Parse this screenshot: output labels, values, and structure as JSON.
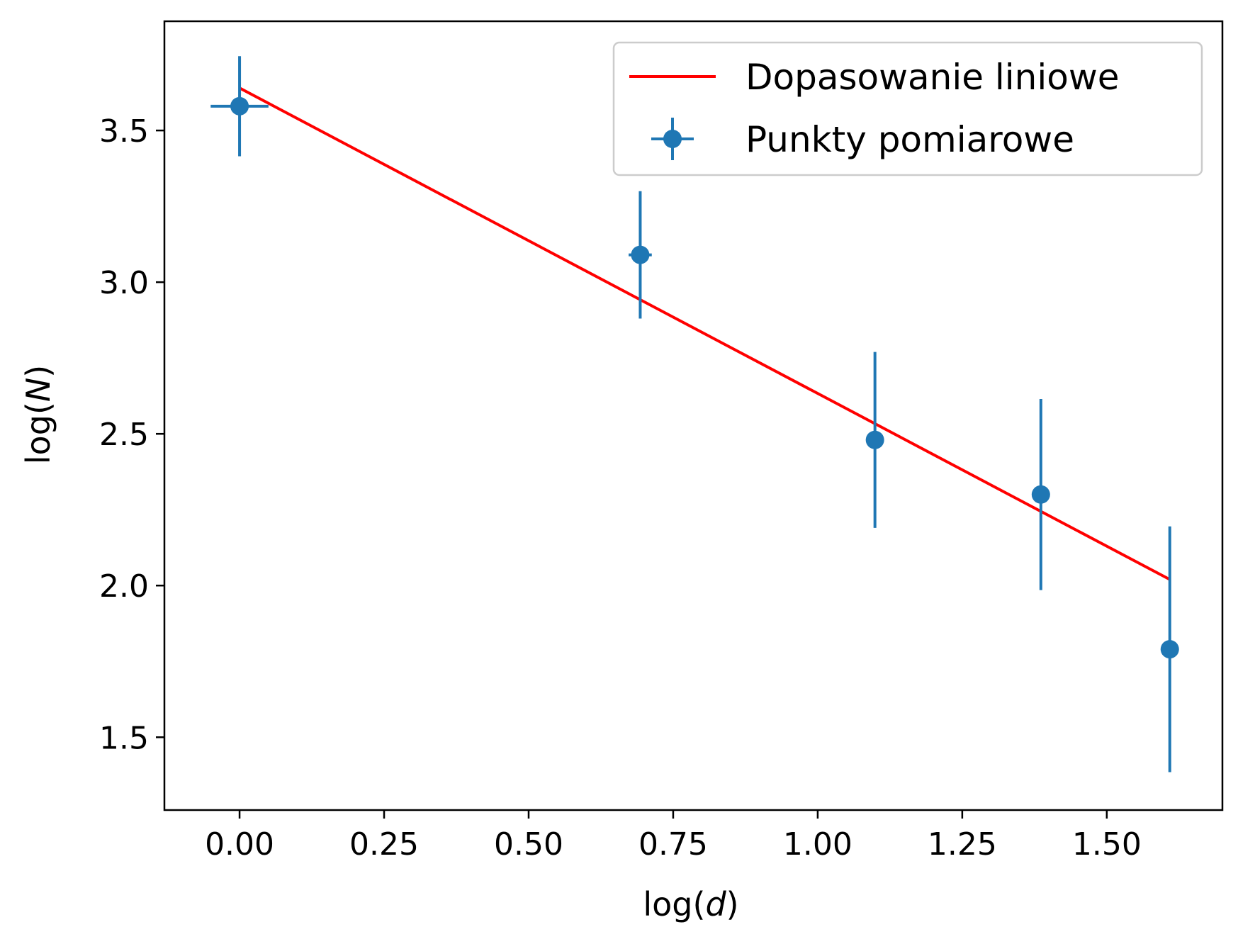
{
  "chart_data": {
    "type": "scatter",
    "xlabel": {
      "prefix": "log(",
      "var": "d",
      "suffix": ")"
    },
    "ylabel": {
      "prefix": "log(",
      "var": "N",
      "suffix": ")"
    },
    "xlim": [
      -0.13,
      1.7
    ],
    "ylim": [
      1.26,
      3.86
    ],
    "xticks": [
      "0.00",
      "0.25",
      "0.50",
      "0.75",
      "1.00",
      "1.25",
      "1.50"
    ],
    "yticks": [
      "1.5",
      "2.0",
      "2.5",
      "3.0",
      "3.5"
    ],
    "grid": false,
    "legend_position": "top-right",
    "series": [
      {
        "name": "Dopasowanie liniowe",
        "kind": "line",
        "color": "#ff0000",
        "points": [
          [
            0.0,
            3.64
          ],
          [
            1.609,
            2.02
          ]
        ]
      },
      {
        "name": "Punkty pomiarowe",
        "kind": "errorbar",
        "color": "#1f77b4",
        "points": [
          {
            "x": 0.0,
            "y": 3.58,
            "xerr": 0.05,
            "yerr": 0.165
          },
          {
            "x": 0.693,
            "y": 3.09,
            "xerr": 0.02,
            "yerr": 0.21
          },
          {
            "x": 1.099,
            "y": 2.48,
            "xerr": 0.0,
            "yerr": 0.29
          },
          {
            "x": 1.386,
            "y": 2.3,
            "xerr": 0.0,
            "yerr": 0.315
          },
          {
            "x": 1.609,
            "y": 1.79,
            "xerr": 0.0,
            "yerr": 0.405
          }
        ]
      }
    ]
  }
}
